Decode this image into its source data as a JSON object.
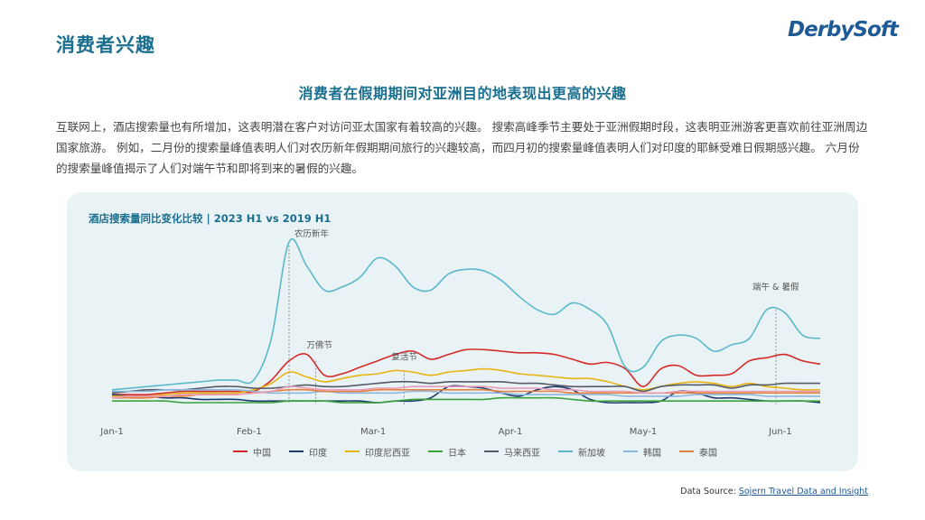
{
  "page": {
    "title": "消费者兴趣",
    "logo": "DerbySoft",
    "headline": "消费者在假期期间对亚洲目的地表现出更高的兴趣",
    "description": "互联网上，酒店搜索量也有所增加，这表明潜在客户对访问亚太国家有着较高的兴趣。 搜索高峰季节主要处于亚洲假期时段，这表明亚洲游客更喜欢前往亚洲周边国家旅游。 例如，二月份的搜索量峰值表明人们对农历新年假期期间旅行的兴趣较高，而四月初的搜索量峰值表明人们对印度的耶稣受难日假期感兴趣。 六月份的搜索量峰值揭示了人们对端午节和即将到来的暑假的兴趣。",
    "source_label": "Data Source: ",
    "source_link": "Sojern Travel Data and Insight"
  },
  "chart_data": {
    "type": "line",
    "title": "酒店搜索量同比变化比较 | 2023 H1 vs 2019 H1",
    "x_tick_labels": [
      "Jan-1",
      "Feb-1",
      "Mar-1",
      "Apr-1",
      "May-1",
      "Jun-1"
    ],
    "x_tick_days": [
      0,
      31,
      59,
      90,
      120,
      151
    ],
    "xlim": [
      0,
      160
    ],
    "ylim": [
      0,
      100
    ],
    "grid": false,
    "legend_position": "bottom",
    "x": [
      0,
      4,
      8,
      12,
      16,
      20,
      24,
      28,
      32,
      36,
      40,
      44,
      48,
      52,
      56,
      60,
      64,
      68,
      72,
      76,
      80,
      84,
      88,
      92,
      96,
      100,
      104,
      108,
      112,
      116,
      120,
      124,
      128,
      132,
      136,
      140,
      144,
      148,
      152,
      156,
      160
    ],
    "series": [
      {
        "name": "中国",
        "color": "#d42a2a",
        "values": [
          5,
          5,
          5,
          6,
          7,
          7,
          7,
          7,
          7,
          14,
          26,
          30,
          17,
          18,
          22,
          26,
          30,
          32,
          27,
          30,
          33,
          33,
          32,
          31,
          31,
          30,
          27,
          24,
          25,
          21,
          10,
          21,
          23,
          17,
          17,
          18,
          26,
          28,
          30,
          26,
          24
        ]
      },
      {
        "name": "印度",
        "color": "#1f3b6e",
        "values": [
          5,
          4,
          4,
          3,
          3,
          2,
          2,
          2,
          1,
          1,
          1,
          1,
          1,
          1,
          1,
          0,
          1,
          1,
          3,
          10,
          10,
          9,
          6,
          4,
          8,
          10,
          8,
          2,
          0,
          0,
          0,
          1,
          7,
          6,
          3,
          3,
          2,
          1,
          1,
          1,
          0
        ]
      },
      {
        "name": "印度尼西亚",
        "color": "#e7b416",
        "values": [
          4,
          4,
          4,
          5,
          6,
          6,
          6,
          6,
          8,
          12,
          19,
          16,
          13,
          15,
          17,
          18,
          20,
          19,
          17,
          19,
          20,
          21,
          20,
          18,
          17,
          16,
          15,
          15,
          13,
          10,
          8,
          10,
          12,
          13,
          12,
          10,
          12,
          10,
          9,
          8,
          8
        ]
      },
      {
        "name": "日本",
        "color": "#3aa33a",
        "values": [
          1,
          1,
          1,
          1,
          0,
          0,
          0,
          0,
          0,
          0,
          1,
          1,
          1,
          0,
          0,
          0,
          1,
          2,
          2,
          2,
          2,
          2,
          3,
          3,
          3,
          3,
          2,
          1,
          1,
          1,
          1,
          1,
          1,
          1,
          1,
          1,
          1,
          1,
          1,
          1,
          1
        ]
      },
      {
        "name": "马来西亚",
        "color": "#555a66",
        "values": [
          6,
          7,
          8,
          8,
          8,
          9,
          10,
          10,
          9,
          9,
          10,
          11,
          10,
          10,
          11,
          12,
          13,
          13,
          12,
          13,
          13,
          13,
          13,
          12,
          12,
          11,
          10,
          10,
          10,
          10,
          7,
          10,
          11,
          11,
          11,
          9,
          11,
          11,
          12,
          12,
          12
        ]
      },
      {
        "name": "新加坡",
        "color": "#5bb8c9",
        "values": [
          8,
          9,
          10,
          11,
          12,
          13,
          14,
          14,
          14,
          40,
          100,
          85,
          70,
          72,
          78,
          90,
          85,
          72,
          70,
          80,
          83,
          82,
          76,
          66,
          58,
          55,
          62,
          58,
          48,
          22,
          22,
          38,
          42,
          40,
          32,
          36,
          40,
          58,
          56,
          42,
          40
        ]
      },
      {
        "name": "韩国",
        "color": "#8bb6dd",
        "values": [
          7,
          7,
          7,
          8,
          8,
          8,
          8,
          8,
          7,
          6,
          6,
          6,
          7,
          6,
          6,
          6,
          6,
          7,
          7,
          6,
          6,
          6,
          6,
          5,
          5,
          5,
          5,
          5,
          5,
          4,
          4,
          4,
          4,
          5,
          5,
          5,
          5,
          4,
          4,
          4,
          4
        ]
      },
      {
        "name": "泰国",
        "color": "#e8803a",
        "values": [
          3,
          3,
          3,
          4,
          4,
          5,
          5,
          5,
          6,
          7,
          8,
          8,
          7,
          7,
          7,
          8,
          8,
          8,
          8,
          8,
          8,
          8,
          7,
          7,
          7,
          7,
          6,
          6,
          6,
          6,
          6,
          6,
          6,
          6,
          6,
          6,
          6,
          6,
          6,
          6,
          6
        ]
      },
      {
        "name": "",
        "color": "#e89ab6",
        "values": [
          3,
          4,
          4,
          4,
          5,
          5,
          5,
          5,
          6,
          7,
          10,
          9,
          8,
          8,
          8,
          9,
          9,
          10,
          10,
          10,
          10,
          10,
          9,
          9,
          9,
          8,
          8,
          7,
          7,
          7,
          6,
          6,
          7,
          7,
          7,
          7,
          7,
          7,
          7,
          7,
          7
        ]
      }
    ],
    "annotations": [
      {
        "label": "农历新年",
        "x": 40,
        "y": 100,
        "ref_series": 5
      },
      {
        "label": "万佛节",
        "x": 46,
        "y": 26,
        "ref_series": 0
      },
      {
        "label": "复活节",
        "x": 66,
        "y": 20,
        "ref_series": 2
      },
      {
        "label": "端午 & 暑假",
        "x": 150,
        "y": 58,
        "ref_series": 5
      }
    ]
  }
}
